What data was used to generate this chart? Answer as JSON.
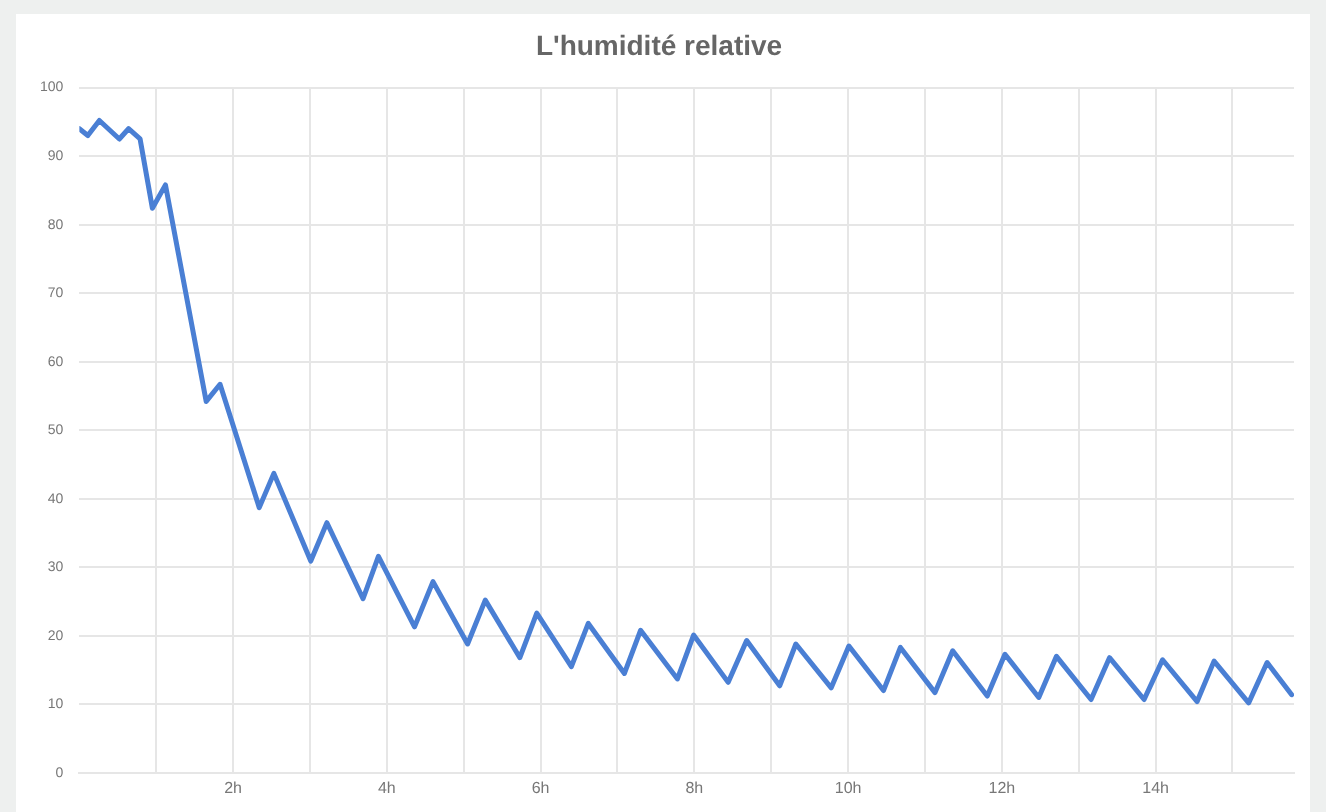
{
  "chart_data": {
    "type": "line",
    "title": "L'humidité relative",
    "x": [
      0,
      0.11,
      0.26,
      0.52,
      0.64,
      0.79,
      0.95,
      1.12,
      1.65,
      1.83,
      2.34,
      2.53,
      3.01,
      3.22,
      3.69,
      3.89,
      4.36,
      4.6,
      5.05,
      5.28,
      5.73,
      5.95,
      6.4,
      6.62,
      7.09,
      7.3,
      7.78,
      7.99,
      8.44,
      8.68,
      9.11,
      9.32,
      9.78,
      10.01,
      10.46,
      10.68,
      11.13,
      11.36,
      11.81,
      12.04,
      12.48,
      12.71,
      13.16,
      13.4,
      13.85,
      14.09,
      14.54,
      14.76,
      15.21,
      15.45,
      15.77
    ],
    "series": [
      {
        "color": "#4a7fd4",
        "values": [
          94,
          93,
          95.2,
          92.5,
          94,
          92.5,
          82.4,
          85.8,
          54.2,
          56.7,
          38.7,
          43.7,
          30.9,
          36.5,
          25.4,
          31.6,
          21.3,
          27.9,
          18.8,
          25.2,
          16.8,
          23.3,
          15.5,
          21.8,
          14.5,
          20.8,
          13.7,
          20.1,
          13.2,
          19.3,
          12.7,
          18.8,
          12.4,
          18.5,
          12,
          18.3,
          11.7,
          17.8,
          11.2,
          17.3,
          11,
          17,
          10.7,
          16.8,
          10.7,
          16.5,
          10.4,
          16.3,
          10.2,
          16.1,
          11.4
        ]
      }
    ],
    "xlim": [
      0,
      15.8
    ],
    "xticks": [
      {
        "value": 1,
        "label": null
      },
      {
        "value": 2,
        "label": "2h"
      },
      {
        "value": 3,
        "label": null
      },
      {
        "value": 4,
        "label": "4h"
      },
      {
        "value": 5,
        "label": null
      },
      {
        "value": 6,
        "label": "6h"
      },
      {
        "value": 7,
        "label": null
      },
      {
        "value": 8,
        "label": "8h"
      },
      {
        "value": 9,
        "label": null
      },
      {
        "value": 10,
        "label": "10h"
      },
      {
        "value": 11,
        "label": null
      },
      {
        "value": 12,
        "label": "12h"
      },
      {
        "value": 13,
        "label": null
      },
      {
        "value": 14,
        "label": "14h"
      },
      {
        "value": 15,
        "label": null
      }
    ],
    "ylim": [
      0,
      100
    ],
    "yticks": [
      0,
      10,
      20,
      30,
      40,
      50,
      60,
      70,
      80,
      90,
      100
    ],
    "grid": true,
    "marker": "none",
    "line_style": "solid",
    "legend": false
  }
}
